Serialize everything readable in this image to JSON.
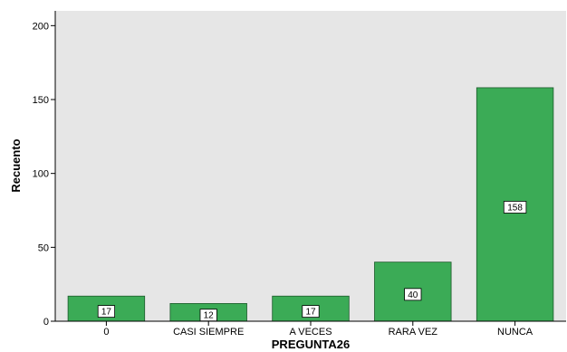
{
  "chart_data": {
    "type": "bar",
    "xlabel": "PREGUNTA26",
    "ylabel": "Recuento",
    "categories": [
      "0",
      "CASI SIEMPRE",
      "A VECES",
      "RARA VEZ",
      "NUNCA"
    ],
    "values": [
      17,
      12,
      17,
      40,
      158
    ],
    "data_labels": [
      "17",
      "12",
      "17",
      "40",
      "158"
    ],
    "yticks": [
      0,
      50,
      100,
      150,
      200
    ],
    "ytick_labels": [
      "0",
      "50",
      "100",
      "150",
      "200"
    ],
    "ylim": [
      0,
      210
    ],
    "grid": false,
    "colors": {
      "bar_fill": "#3bab56",
      "bar_stroke": "#1c5a2b",
      "plot_background": "#e6e6e6",
      "label_box": "#ffffff"
    }
  }
}
